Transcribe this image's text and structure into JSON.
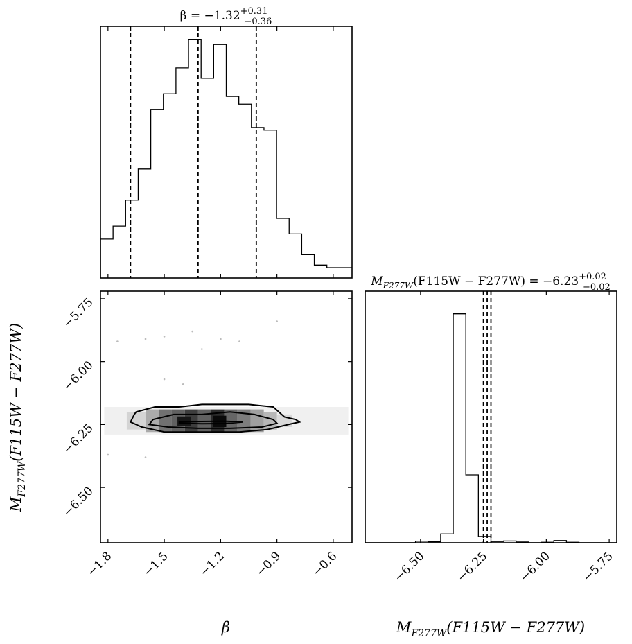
{
  "chart_data": [
    {
      "type": "histogram",
      "panel": "beta-marginal",
      "title_main": "β = −1.32",
      "title_sup": "+0.31",
      "title_sub": "−0.36",
      "xlim": [
        -1.84,
        -0.5
      ],
      "bin_edges": [
        -1.84,
        -1.773,
        -1.706,
        -1.639,
        -1.572,
        -1.505,
        -1.438,
        -1.371,
        -1.304,
        -1.237,
        -1.17,
        -1.103,
        -1.036,
        -0.969,
        -0.902,
        -0.835,
        -0.768,
        -0.701,
        -0.634,
        -0.567,
        -0.5
      ],
      "counts": [
        0.15,
        0.2,
        0.3,
        0.42,
        0.65,
        0.71,
        0.81,
        0.92,
        0.77,
        0.9,
        0.7,
        0.67,
        0.58,
        0.57,
        0.23,
        0.17,
        0.09,
        0.05,
        0.04,
        0.04
      ],
      "quantiles": [
        -1.68,
        -1.32,
        -1.01
      ]
    },
    {
      "type": "heatmap",
      "panel": "joint-density",
      "xlabel": "β",
      "ylabel_main": "M",
      "ylabel_sub": "F277W",
      "ylabel_rest": "(F115W − F277W)",
      "xlim": [
        -1.84,
        -0.5
      ],
      "ylim": [
        -6.72,
        -5.72
      ],
      "xticks": [
        "−1.8",
        "−1.5",
        "−1.2",
        "−0.9",
        "−0.6"
      ],
      "xtick_values": [
        -1.8,
        -1.5,
        -1.2,
        -0.9,
        -0.6
      ],
      "yticks": [
        "−5.75",
        "−6.00",
        "−6.25",
        "−6.50"
      ],
      "ytick_values": [
        -5.75,
        -6.0,
        -6.25,
        -6.5
      ],
      "contours": [
        {
          "level": "outer",
          "points": [
            [
              -1.65,
              -6.2
            ],
            [
              -1.55,
              -6.18
            ],
            [
              -1.42,
              -6.18
            ],
            [
              -1.3,
              -6.17
            ],
            [
              -1.2,
              -6.17
            ],
            [
              -1.05,
              -6.17
            ],
            [
              -0.92,
              -6.18
            ],
            [
              -0.86,
              -6.22
            ],
            [
              -0.8,
              -6.23
            ],
            [
              -0.78,
              -6.24
            ],
            [
              -0.84,
              -6.25
            ],
            [
              -0.95,
              -6.27
            ],
            [
              -1.1,
              -6.28
            ],
            [
              -1.3,
              -6.28
            ],
            [
              -1.5,
              -6.28
            ],
            [
              -1.62,
              -6.26
            ],
            [
              -1.68,
              -6.24
            ],
            [
              -1.66,
              -6.21
            ],
            [
              -1.65,
              -6.2
            ]
          ]
        },
        {
          "level": "inner",
          "points": [
            [
              -1.56,
              -6.23
            ],
            [
              -1.45,
              -6.21
            ],
            [
              -1.3,
              -6.21
            ],
            [
              -1.15,
              -6.2
            ],
            [
              -1.02,
              -6.21
            ],
            [
              -0.92,
              -6.23
            ],
            [
              -0.9,
              -6.245
            ],
            [
              -0.98,
              -6.26
            ],
            [
              -1.15,
              -6.265
            ],
            [
              -1.32,
              -6.265
            ],
            [
              -1.48,
              -6.26
            ],
            [
              -1.58,
              -6.25
            ],
            [
              -1.56,
              -6.23
            ]
          ]
        },
        {
          "level": "core",
          "points": [
            [
              -1.42,
              -6.24
            ],
            [
              -1.3,
              -6.238
            ],
            [
              -1.18,
              -6.237
            ],
            [
              -1.08,
              -6.24
            ],
            [
              -1.18,
              -6.246
            ],
            [
              -1.3,
              -6.247
            ],
            [
              -1.42,
              -6.245
            ],
            [
              -1.42,
              -6.24
            ]
          ]
        }
      ],
      "density_cells": [
        {
          "x0": -1.7,
          "x1": -1.6,
          "y0": -6.27,
          "y1": -6.2,
          "shade": 0.12
        },
        {
          "x0": -1.6,
          "x1": -1.53,
          "y0": -6.28,
          "y1": -6.19,
          "shade": 0.3
        },
        {
          "x0": -1.53,
          "x1": -1.46,
          "y0": -6.28,
          "y1": -6.19,
          "shade": 0.55
        },
        {
          "x0": -1.46,
          "x1": -1.39,
          "y0": -6.28,
          "y1": -6.19,
          "shade": 0.62
        },
        {
          "x0": -1.39,
          "x1": -1.32,
          "y0": -6.28,
          "y1": -6.19,
          "shade": 0.78
        },
        {
          "x0": -1.32,
          "x1": -1.25,
          "y0": -6.28,
          "y1": -6.19,
          "shade": 0.62
        },
        {
          "x0": -1.25,
          "x1": -1.18,
          "y0": -6.28,
          "y1": -6.19,
          "shade": 0.85
        },
        {
          "x0": -1.18,
          "x1": -1.11,
          "y0": -6.28,
          "y1": -6.19,
          "shade": 0.6
        },
        {
          "x0": -1.11,
          "x1": -1.04,
          "y0": -6.28,
          "y1": -6.19,
          "shade": 0.5
        },
        {
          "x0": -1.04,
          "x1": -0.97,
          "y0": -6.28,
          "y1": -6.19,
          "shade": 0.35
        },
        {
          "x0": -0.97,
          "x1": -0.9,
          "y0": -6.27,
          "y1": -6.2,
          "shade": 0.25
        },
        {
          "x0": -0.9,
          "x1": -0.82,
          "y0": -6.26,
          "y1": -6.21,
          "shade": 0.1
        },
        {
          "x0": -1.43,
          "x1": -1.36,
          "y0": -6.257,
          "y1": -6.218,
          "shade": 0.95
        },
        {
          "x0": -1.24,
          "x1": -1.17,
          "y0": -6.26,
          "y1": -6.215,
          "shade": 1.0
        }
      ],
      "outlier_points": [
        [
          -1.75,
          -5.92
        ],
        [
          -1.6,
          -5.91
        ],
        [
          -1.5,
          -5.9
        ],
        [
          -1.35,
          -5.88
        ],
        [
          -1.2,
          -5.91
        ],
        [
          -0.9,
          -5.84
        ],
        [
          -1.3,
          -5.95
        ],
        [
          -1.5,
          -6.07
        ],
        [
          -1.4,
          -6.09
        ],
        [
          -1.8,
          -6.37
        ],
        [
          -1.6,
          -6.38
        ],
        [
          -0.55,
          -6.28
        ],
        [
          -0.7,
          -6.27
        ],
        [
          -1.1,
          -5.92
        ]
      ]
    },
    {
      "type": "histogram",
      "panel": "magnitude-marginal",
      "title_main_a": "M",
      "title_sub_a": "F277W",
      "title_main_b": "(F115W − F277W) = −6.23",
      "title_sup": "+0.02",
      "title_sub": "−0.02",
      "xlabel_main": "M",
      "xlabel_sub": "F277W",
      "xlabel_rest": "(F115W − F277W)",
      "xlim": [
        -6.72,
        -5.72
      ],
      "xticks": [
        "−6.50",
        "−6.25",
        "−6.00",
        "−5.75"
      ],
      "xtick_values": [
        -6.5,
        -6.25,
        -6.0,
        -5.75
      ],
      "bin_edges": [
        -6.72,
        -6.67,
        -6.62,
        -6.57,
        -6.52,
        -6.47,
        -6.42,
        -6.37,
        -6.32,
        -6.27,
        -6.22,
        -6.17,
        -6.12,
        -6.07,
        -6.02,
        -5.97,
        -5.92,
        -5.87,
        -5.82,
        -5.77,
        -5.72
      ],
      "counts": [
        0,
        0,
        0,
        0,
        0.006,
        0.004,
        0.035,
        0.91,
        0.27,
        0.025,
        0.005,
        0.007,
        0.003,
        0.0,
        0.002,
        0.009,
        0.002,
        0.0,
        0.0,
        0.0
      ],
      "quantiles": [
        -6.25,
        -6.235,
        -6.22
      ]
    }
  ]
}
